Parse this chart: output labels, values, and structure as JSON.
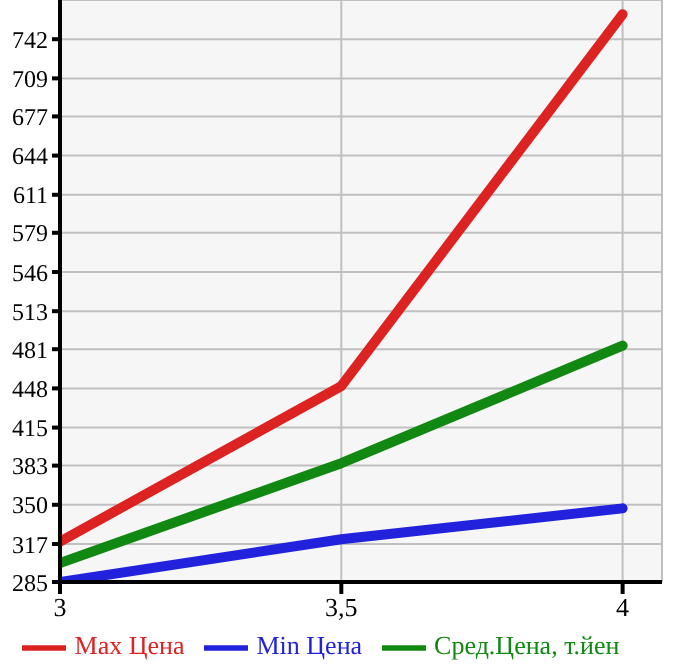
{
  "chart_data": {
    "type": "line",
    "x": [
      3,
      3.5,
      4
    ],
    "series": [
      {
        "name": "Max Цена",
        "color": "#dd2222",
        "values": [
          319,
          450,
          763
        ]
      },
      {
        "name": "Min Цена",
        "color": "#2222dd",
        "values": [
          285,
          321,
          347
        ]
      },
      {
        "name": "Сред.Цена, т.йен",
        "color": "#118811",
        "values": [
          301,
          385,
          484
        ]
      }
    ],
    "xlim": [
      3,
      4.07
    ],
    "xticks": [
      3,
      {
        "value": 3.5,
        "label": "3,5"
      },
      4
    ],
    "ylim": [
      285,
      775
    ],
    "yticks": [
      285,
      317,
      350,
      383,
      415,
      448,
      481,
      513,
      546,
      579,
      611,
      644,
      677,
      709,
      742
    ],
    "grid": true,
    "legend": "bottom",
    "marker": "none",
    "line_style": "solid"
  }
}
